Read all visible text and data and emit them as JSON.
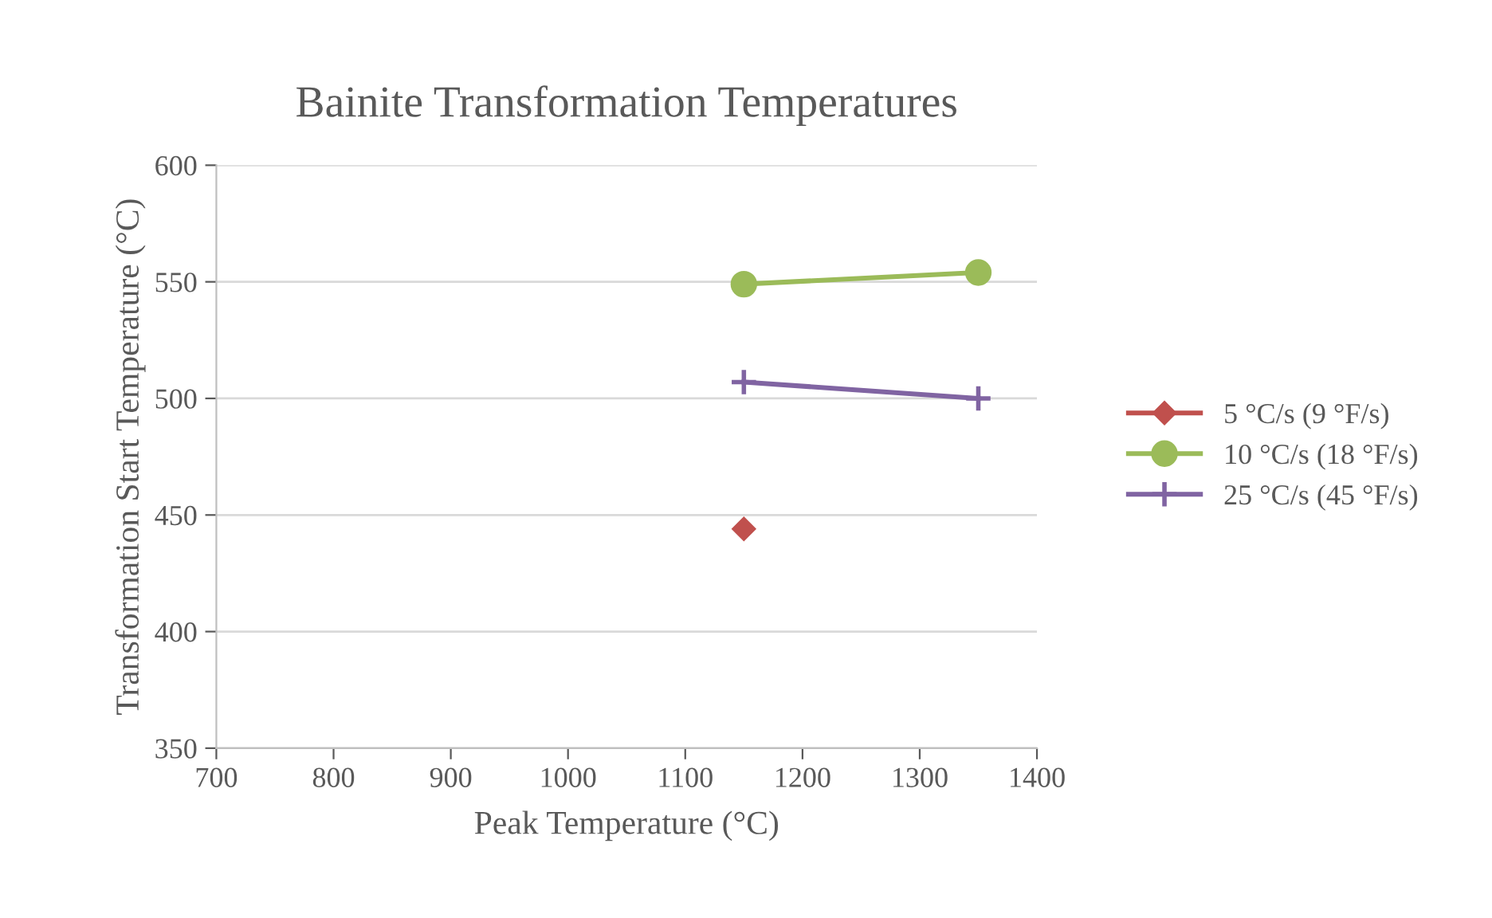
{
  "chart_data": {
    "type": "line",
    "title": "Bainite Transformation Temperatures",
    "xlabel": "Peak Temperature (°C)",
    "ylabel": "Transformation Start Temperature (°C)",
    "series": [
      {
        "name": "5 °C/s (9 °F/s)",
        "color": "#c0504d",
        "marker": "diamond",
        "values": [
          444,
          null
        ]
      },
      {
        "name": "10 °C/s (18 °F/s)",
        "color": "#9bbb59",
        "marker": "circle",
        "values": [
          549,
          554
        ]
      },
      {
        "name": "25 °C/s (45 °F/s)",
        "color": "#8064a2",
        "marker": "cross",
        "values": [
          507,
          500
        ]
      }
    ],
    "x": [
      1150,
      1350
    ],
    "xlim": [
      700,
      1400
    ],
    "xticks": [
      700,
      800,
      900,
      1000,
      1100,
      1200,
      1300,
      1400
    ],
    "ylim": [
      350,
      600
    ],
    "yticks": [
      350,
      400,
      450,
      500,
      550,
      600
    ],
    "grid": "y",
    "legend": "right",
    "line_style": "solid"
  }
}
